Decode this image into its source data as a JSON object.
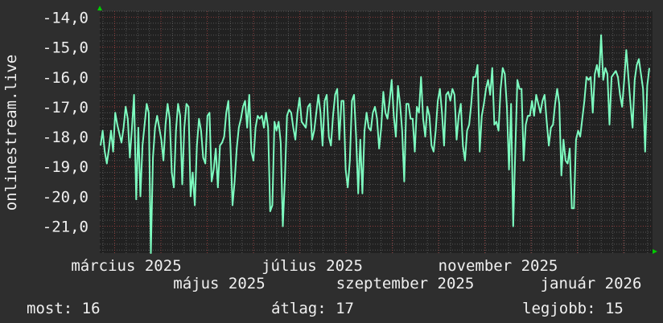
{
  "chart_data": {
    "type": "line",
    "ylabel": "onlinestream.live",
    "ylim": [
      -21.9,
      -13.8
    ],
    "yticks": [
      "-14,0",
      "-15,0",
      "-16,0",
      "-17,0",
      "-18,0",
      "-19,0",
      "-20,0",
      "-21,0"
    ],
    "ytick_values": [
      -14,
      -15,
      -16,
      -17,
      -18,
      -19,
      -20,
      -21
    ],
    "xtick_labels": [
      "március 2025",
      "május 2025",
      "július 2025",
      "szeptember 2025",
      "november 2025",
      "január 2026"
    ],
    "grid": true,
    "colors": {
      "line": "#7dfcc0",
      "background": "#212121",
      "page": "#2e2e2e",
      "major_grid": "#8a3a3a",
      "minor_grid": "#555555",
      "arrow": "#00cc00"
    },
    "series": [
      {
        "values": [
          -18.3,
          -17.8,
          -18.5,
          -18.9,
          -18.4,
          -17.8,
          -18.5,
          -17.2,
          -17.6,
          -17.9,
          -18.2,
          -17.7,
          -17.0,
          -17.4,
          -18.7,
          -17.7,
          -16.6,
          -20.1,
          -17.7,
          -20.0,
          -18.3,
          -17.6,
          -16.9,
          -17.2,
          -21.9,
          -18.7,
          -17.7,
          -17.3,
          -17.7,
          -18.1,
          -18.8,
          -17.6,
          -16.9,
          -17.4,
          -19.2,
          -19.7,
          -17.8,
          -16.9,
          -17.3,
          -19.6,
          -17.7,
          -16.9,
          -17.0,
          -20.0,
          -19.2,
          -20.3,
          -18.3,
          -17.4,
          -17.8,
          -18.7,
          -18.9,
          -17.3,
          -17.2,
          -19.5,
          -19.1,
          -18.4,
          -19.7,
          -18.3,
          -18.2,
          -18.0,
          -17.2,
          -16.8,
          -18.3,
          -20.3,
          -19.5,
          -18.4,
          -17.7,
          -17.4,
          -17.0,
          -16.8,
          -17.7,
          -16.6,
          -18.5,
          -18.8,
          -17.7,
          -17.3,
          -17.4,
          -17.3,
          -17.7,
          -17.2,
          -17.7,
          -20.5,
          -20.3,
          -17.5,
          -17.8,
          -17.5,
          -18.2,
          -21.0,
          -19.4,
          -17.3,
          -17.1,
          -17.2,
          -17.7,
          -18.1,
          -17.2,
          -16.7,
          -17.5,
          -17.6,
          -17.7,
          -17.0,
          -16.9,
          -18.1,
          -17.8,
          -17.2,
          -16.6,
          -17.2,
          -18.3,
          -16.8,
          -16.6,
          -18.0,
          -18.3,
          -17.3,
          -16.6,
          -16.4,
          -18.1,
          -16.8,
          -16.8,
          -19.1,
          -19.7,
          -18.8,
          -16.8,
          -16.6,
          -18.0,
          -19.9,
          -18.1,
          -19.9,
          -17.8,
          -17.2,
          -17.7,
          -17.8,
          -17.2,
          -17.0,
          -17.4,
          -18.4,
          -17.7,
          -16.5,
          -17.2,
          -17.4,
          -16.8,
          -16.1,
          -17.3,
          -18.0,
          -16.3,
          -16.9,
          -17.8,
          -19.5,
          -16.9,
          -16.9,
          -17.4,
          -17.4,
          -18.5,
          -17.0,
          -17.2,
          -16.0,
          -17.4,
          -18.0,
          -17.0,
          -17.3,
          -18.3,
          -18.5,
          -17.8,
          -16.8,
          -16.4,
          -17.2,
          -18.3,
          -16.6,
          -16.5,
          -16.8,
          -16.4,
          -16.6,
          -18.1,
          -17.3,
          -16.9,
          -18.3,
          -18.8,
          -17.8,
          -17.6,
          -16.9,
          -16.0,
          -16.0,
          -15.6,
          -18.5,
          -17.3,
          -16.9,
          -16.4,
          -16.1,
          -16.6,
          -15.7,
          -17.6,
          -17.5,
          -17.8,
          -16.4,
          -15.7,
          -15.9,
          -17.0,
          -19.1,
          -16.9,
          -21.0,
          -18.5,
          -16.1,
          -16.4,
          -16.4,
          -18.8,
          -17.6,
          -17.3,
          -17.3,
          -16.8,
          -17.3,
          -16.6,
          -16.9,
          -17.2,
          -16.8,
          -16.6,
          -17.5,
          -18.3,
          -17.7,
          -17.6,
          -16.9,
          -16.4,
          -16.9,
          -19.3,
          -18.1,
          -18.8,
          -18.9,
          -18.4,
          -20.4,
          -20.4,
          -18.1,
          -17.8,
          -18.0,
          -17.4,
          -16.8,
          -16.0,
          -16.1,
          -16.0,
          -17.2,
          -15.9,
          -15.6,
          -16.0,
          -14.6,
          -16.1,
          -15.7,
          -15.9,
          -17.6,
          -16.0,
          -15.9,
          -15.8,
          -16.0,
          -16.6,
          -17.0,
          -16.1,
          -15.1,
          -16.0,
          -16.9,
          -17.7,
          -16.1,
          -15.6,
          -15.4,
          -15.9,
          -16.4,
          -18.5,
          -16.3,
          -15.7
        ]
      }
    ]
  },
  "legend": {
    "current": "most: 16",
    "average": "átlag: 17",
    "best": "legjobb: 15"
  }
}
